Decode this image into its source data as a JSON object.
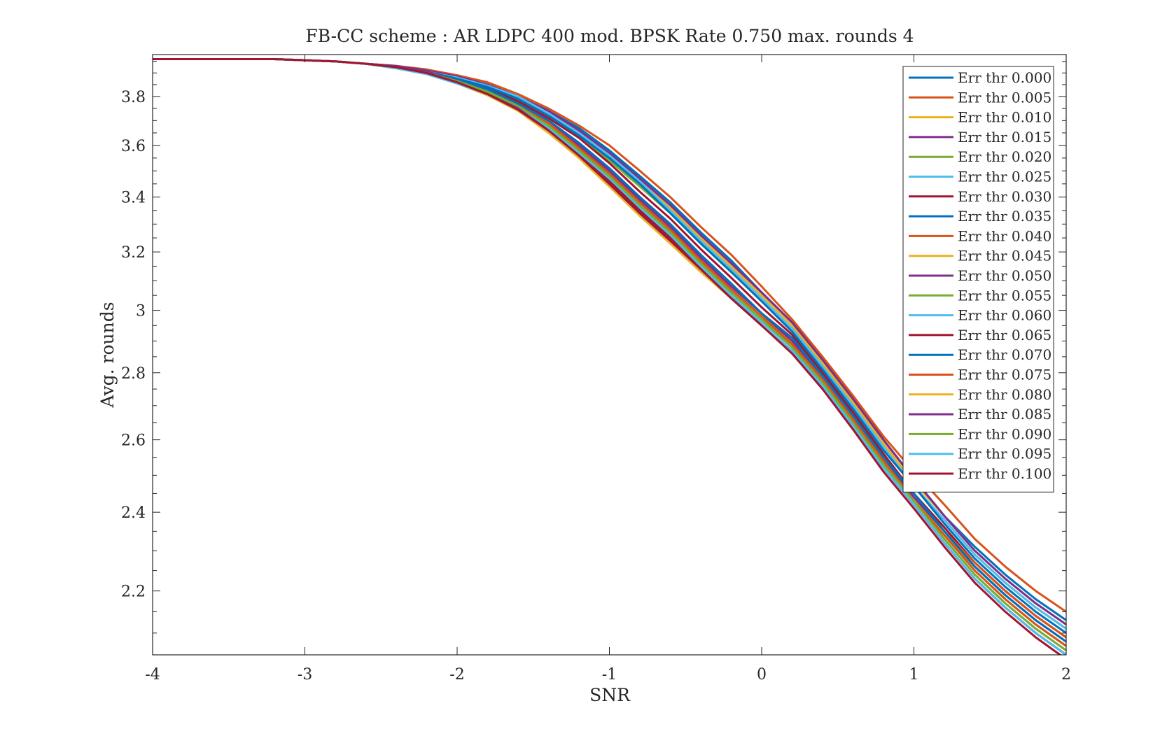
{
  "chart_data": {
    "type": "line",
    "title": "FB-CC scheme : AR LDPC 400 mod. BPSK Rate 0.750 max. rounds 4",
    "xlabel": "SNR",
    "ylabel": "Avg. rounds",
    "xlim": [
      -4,
      2
    ],
    "ylim": [
      2.05,
      3.98
    ],
    "y_scale": "log",
    "grid": false,
    "legend_position": "top-right",
    "x_ticks": [
      -4,
      -3,
      -2,
      -1,
      0,
      1,
      2
    ],
    "x_tick_labels": [
      "-4",
      "-3",
      "-2",
      "-1",
      "0",
      "1",
      "2"
    ],
    "y_ticks": [
      2.2,
      2.4,
      2.6,
      2.8,
      3,
      3.2,
      3.4,
      3.6,
      3.8
    ],
    "y_tick_labels": [
      "2.2",
      "2.4",
      "2.6",
      "2.8",
      "3",
      "3.2",
      "3.4",
      "3.6",
      "3.8"
    ],
    "x": [
      -4,
      -3.8,
      -3.6,
      -3.4,
      -3.2,
      -3,
      -2.8,
      -2.6,
      -2.4,
      -2.2,
      -2,
      -1.8,
      -1.6,
      -1.4,
      -1.2,
      -1,
      -0.8,
      -0.6,
      -0.4,
      -0.2,
      0,
      0.2,
      0.4,
      0.6,
      0.8,
      1,
      1.2,
      1.4,
      1.6,
      1.8,
      2
    ],
    "series": [
      {
        "name": "Err thr 0.000",
        "color": "#0072BD",
        "values": [
          3.96,
          3.96,
          3.96,
          3.96,
          3.96,
          3.955,
          3.95,
          3.94,
          3.93,
          3.91,
          3.88,
          3.85,
          3.8,
          3.74,
          3.67,
          3.58,
          3.48,
          3.38,
          3.27,
          3.17,
          3.06,
          2.96,
          2.84,
          2.72,
          2.6,
          2.49,
          2.39,
          2.31,
          2.24,
          2.18,
          2.13
        ]
      },
      {
        "name": "Err thr 0.005",
        "color": "#D95319",
        "values": [
          3.96,
          3.96,
          3.96,
          3.96,
          3.96,
          3.955,
          3.95,
          3.94,
          3.93,
          3.915,
          3.89,
          3.86,
          3.81,
          3.75,
          3.68,
          3.6,
          3.5,
          3.4,
          3.29,
          3.19,
          3.08,
          2.97,
          2.85,
          2.73,
          2.61,
          2.51,
          2.42,
          2.33,
          2.26,
          2.2,
          2.15
        ]
      },
      {
        "name": "Err thr 0.010",
        "color": "#EDB120",
        "values": [
          3.96,
          3.96,
          3.96,
          3.96,
          3.96,
          3.955,
          3.95,
          3.94,
          3.925,
          3.905,
          3.875,
          3.84,
          3.79,
          3.73,
          3.65,
          3.56,
          3.46,
          3.36,
          3.25,
          3.15,
          3.05,
          2.95,
          2.83,
          2.71,
          2.59,
          2.48,
          2.39,
          2.3,
          2.23,
          2.17,
          2.12
        ]
      },
      {
        "name": "Err thr 0.015",
        "color": "#7E2F8E",
        "values": [
          3.96,
          3.96,
          3.96,
          3.96,
          3.96,
          3.955,
          3.95,
          3.94,
          3.93,
          3.91,
          3.885,
          3.85,
          3.8,
          3.74,
          3.66,
          3.57,
          3.47,
          3.37,
          3.26,
          3.16,
          3.06,
          2.96,
          2.84,
          2.72,
          2.6,
          2.49,
          2.39,
          2.3,
          2.23,
          2.17,
          2.12
        ]
      },
      {
        "name": "Err thr 0.020",
        "color": "#77AC30",
        "values": [
          3.96,
          3.96,
          3.96,
          3.96,
          3.96,
          3.955,
          3.95,
          3.94,
          3.925,
          3.905,
          3.875,
          3.84,
          3.79,
          3.72,
          3.64,
          3.54,
          3.44,
          3.34,
          3.23,
          3.13,
          3.03,
          2.94,
          2.82,
          2.7,
          2.58,
          2.47,
          2.38,
          2.29,
          2.22,
          2.16,
          2.11
        ]
      },
      {
        "name": "Err thr 0.025",
        "color": "#4DBEEE",
        "values": [
          3.96,
          3.96,
          3.96,
          3.96,
          3.96,
          3.955,
          3.95,
          3.94,
          3.925,
          3.905,
          3.88,
          3.845,
          3.8,
          3.73,
          3.65,
          3.56,
          3.46,
          3.35,
          3.24,
          3.14,
          3.04,
          2.94,
          2.82,
          2.7,
          2.58,
          2.47,
          2.38,
          2.29,
          2.22,
          2.16,
          2.11
        ]
      },
      {
        "name": "Err thr 0.030",
        "color": "#A2142F",
        "values": [
          3.96,
          3.96,
          3.96,
          3.96,
          3.96,
          3.955,
          3.95,
          3.94,
          3.925,
          3.905,
          3.87,
          3.835,
          3.78,
          3.71,
          3.63,
          3.53,
          3.42,
          3.32,
          3.21,
          3.11,
          3.01,
          2.92,
          2.8,
          2.68,
          2.56,
          2.45,
          2.36,
          2.27,
          2.2,
          2.14,
          2.09
        ]
      },
      {
        "name": "Err thr 0.035",
        "color": "#0072BD",
        "values": [
          3.96,
          3.96,
          3.96,
          3.96,
          3.96,
          3.955,
          3.95,
          3.94,
          3.925,
          3.905,
          3.875,
          3.84,
          3.79,
          3.72,
          3.64,
          3.55,
          3.45,
          3.34,
          3.23,
          3.13,
          3.03,
          2.93,
          2.81,
          2.69,
          2.57,
          2.47,
          2.37,
          2.28,
          2.21,
          2.15,
          2.1
        ]
      },
      {
        "name": "Err thr 0.040",
        "color": "#D95319",
        "values": [
          3.96,
          3.96,
          3.96,
          3.96,
          3.96,
          3.955,
          3.95,
          3.94,
          3.925,
          3.9,
          3.87,
          3.83,
          3.77,
          3.7,
          3.61,
          3.51,
          3.4,
          3.3,
          3.19,
          3.09,
          2.99,
          2.91,
          2.79,
          2.67,
          2.55,
          2.45,
          2.35,
          2.27,
          2.2,
          2.14,
          2.09
        ]
      },
      {
        "name": "Err thr 0.045",
        "color": "#EDB120",
        "values": [
          3.96,
          3.96,
          3.96,
          3.96,
          3.96,
          3.955,
          3.95,
          3.94,
          3.925,
          3.9,
          3.865,
          3.82,
          3.76,
          3.68,
          3.59,
          3.49,
          3.38,
          3.28,
          3.17,
          3.07,
          2.98,
          2.9,
          2.78,
          2.66,
          2.54,
          2.44,
          2.34,
          2.26,
          2.19,
          2.13,
          2.08
        ]
      },
      {
        "name": "Err thr 0.050",
        "color": "#7E2F8E",
        "values": [
          3.96,
          3.96,
          3.96,
          3.96,
          3.96,
          3.955,
          3.95,
          3.94,
          3.925,
          3.905,
          3.87,
          3.83,
          3.77,
          3.7,
          3.6,
          3.5,
          3.39,
          3.29,
          3.18,
          3.08,
          2.99,
          2.9,
          2.79,
          2.67,
          2.55,
          2.44,
          2.35,
          2.26,
          2.19,
          2.13,
          2.08
        ]
      },
      {
        "name": "Err thr 0.055",
        "color": "#77AC30",
        "values": [
          3.96,
          3.96,
          3.96,
          3.96,
          3.96,
          3.955,
          3.95,
          3.94,
          3.925,
          3.9,
          3.865,
          3.82,
          3.76,
          3.68,
          3.58,
          3.48,
          3.37,
          3.27,
          3.16,
          3.06,
          2.97,
          2.89,
          2.78,
          2.66,
          2.54,
          2.43,
          2.34,
          2.25,
          2.18,
          2.12,
          2.07
        ]
      },
      {
        "name": "Err thr 0.060",
        "color": "#4DBEEE",
        "values": [
          3.96,
          3.96,
          3.96,
          3.96,
          3.96,
          3.955,
          3.95,
          3.94,
          3.925,
          3.9,
          3.865,
          3.82,
          3.755,
          3.67,
          3.57,
          3.47,
          3.36,
          3.26,
          3.15,
          3.05,
          2.96,
          2.88,
          2.77,
          2.65,
          2.53,
          2.43,
          2.33,
          2.24,
          2.17,
          2.11,
          2.06
        ]
      },
      {
        "name": "Err thr 0.065",
        "color": "#A2142F",
        "values": [
          3.96,
          3.96,
          3.96,
          3.96,
          3.96,
          3.955,
          3.95,
          3.94,
          3.925,
          3.9,
          3.86,
          3.815,
          3.75,
          3.66,
          3.56,
          3.46,
          3.35,
          3.25,
          3.14,
          3.04,
          2.95,
          2.87,
          2.76,
          2.64,
          2.52,
          2.42,
          2.32,
          2.23,
          2.16,
          2.1,
          2.05
        ]
      },
      {
        "name": "Err thr 0.070",
        "color": "#0072BD",
        "values": [
          3.96,
          3.96,
          3.96,
          3.96,
          3.96,
          3.955,
          3.95,
          3.94,
          3.925,
          3.9,
          3.87,
          3.83,
          3.77,
          3.7,
          3.61,
          3.51,
          3.4,
          3.3,
          3.19,
          3.09,
          2.99,
          2.91,
          2.79,
          2.67,
          2.55,
          2.45,
          2.35,
          2.26,
          2.19,
          2.13,
          2.08
        ]
      },
      {
        "name": "Err thr 0.075",
        "color": "#D95319",
        "values": [
          3.96,
          3.96,
          3.96,
          3.96,
          3.96,
          3.955,
          3.95,
          3.94,
          3.925,
          3.9,
          3.865,
          3.82,
          3.76,
          3.69,
          3.59,
          3.49,
          3.38,
          3.28,
          3.17,
          3.07,
          2.98,
          2.89,
          2.78,
          2.66,
          2.54,
          2.43,
          2.34,
          2.25,
          2.18,
          2.12,
          2.07
        ]
      },
      {
        "name": "Err thr 0.080",
        "color": "#EDB120",
        "values": [
          3.96,
          3.96,
          3.96,
          3.96,
          3.96,
          3.955,
          3.95,
          3.94,
          3.92,
          3.895,
          3.855,
          3.805,
          3.74,
          3.65,
          3.55,
          3.44,
          3.33,
          3.23,
          3.13,
          3.04,
          2.95,
          2.87,
          2.76,
          2.64,
          2.52,
          2.42,
          2.32,
          2.23,
          2.16,
          2.1,
          2.05
        ]
      },
      {
        "name": "Err thr 0.085",
        "color": "#7E2F8E",
        "values": [
          3.96,
          3.96,
          3.96,
          3.96,
          3.96,
          3.955,
          3.95,
          3.94,
          3.925,
          3.9,
          3.86,
          3.815,
          3.75,
          3.66,
          3.56,
          3.45,
          3.34,
          3.24,
          3.14,
          3.04,
          2.95,
          2.87,
          2.76,
          2.64,
          2.52,
          2.42,
          2.32,
          2.23,
          2.16,
          2.1,
          2.05
        ]
      },
      {
        "name": "Err thr 0.090",
        "color": "#77AC30",
        "values": [
          3.96,
          3.96,
          3.96,
          3.96,
          3.96,
          3.955,
          3.95,
          3.94,
          3.925,
          3.9,
          3.865,
          3.82,
          3.76,
          3.68,
          3.58,
          3.48,
          3.37,
          3.27,
          3.16,
          3.06,
          2.97,
          2.88,
          2.77,
          2.65,
          2.53,
          2.43,
          2.33,
          2.24,
          2.17,
          2.11,
          2.06
        ]
      },
      {
        "name": "Err thr 0.095",
        "color": "#4DBEEE",
        "values": [
          3.96,
          3.96,
          3.96,
          3.96,
          3.96,
          3.955,
          3.95,
          3.94,
          3.92,
          3.895,
          3.855,
          3.81,
          3.745,
          3.66,
          3.56,
          3.45,
          3.34,
          3.24,
          3.14,
          3.04,
          2.95,
          2.87,
          2.76,
          2.64,
          2.52,
          2.42,
          2.32,
          2.23,
          2.16,
          2.1,
          2.05
        ]
      },
      {
        "name": "Err thr 0.100",
        "color": "#A2142F",
        "values": [
          3.96,
          3.96,
          3.96,
          3.96,
          3.96,
          3.955,
          3.95,
          3.94,
          3.925,
          3.9,
          3.86,
          3.81,
          3.745,
          3.66,
          3.56,
          3.45,
          3.34,
          3.24,
          3.14,
          3.04,
          2.95,
          2.86,
          2.75,
          2.63,
          2.51,
          2.41,
          2.31,
          2.22,
          2.15,
          2.09,
          2.04
        ]
      }
    ]
  }
}
